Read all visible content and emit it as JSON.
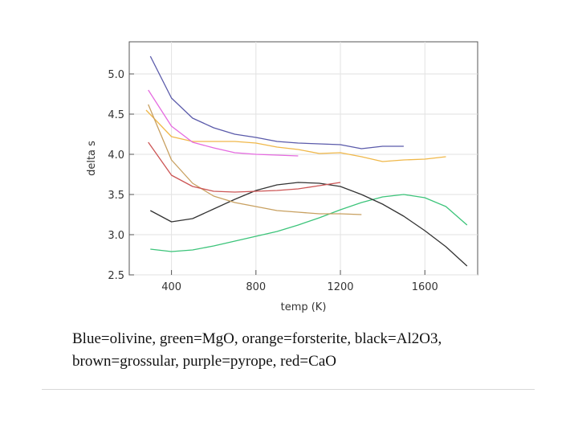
{
  "caption": {
    "line1": "Blue=olivine, green=MgO, orange=forsterite, black=Al2O3,",
    "line2": "brown=grossular, purple=pyrope, red=CaO"
  },
  "chart_data": {
    "type": "line",
    "title": "",
    "xlabel": "temp (K)",
    "ylabel": "delta s",
    "xlim": [
      200,
      1850
    ],
    "ylim": [
      2.5,
      5.4
    ],
    "xticks": [
      400,
      800,
      1200,
      1600
    ],
    "xtick_labels": [
      "400",
      "800",
      "1200",
      "1600"
    ],
    "yticks": [
      2.5,
      3.0,
      3.5,
      4.0,
      4.5,
      5.0
    ],
    "ytick_labels": [
      "2.5",
      "3.0",
      "3.5",
      "4.0",
      "4.5",
      "5.0"
    ],
    "grid": true,
    "series": [
      {
        "name": "olivine",
        "color": "#5a5aaa",
        "x": [
          300,
          400,
          500,
          600,
          700,
          800,
          900,
          1000,
          1100,
          1200,
          1300,
          1400,
          1500
        ],
        "y": [
          5.22,
          4.7,
          4.45,
          4.33,
          4.25,
          4.21,
          4.16,
          4.14,
          4.13,
          4.12,
          4.07,
          4.1,
          4.1
        ]
      },
      {
        "name": "MgO",
        "color": "#3cc47a",
        "x": [
          300,
          400,
          500,
          600,
          700,
          800,
          900,
          1000,
          1100,
          1200,
          1300,
          1400,
          1500,
          1600,
          1700,
          1800
        ],
        "y": [
          2.82,
          2.79,
          2.81,
          2.86,
          2.92,
          2.98,
          3.04,
          3.12,
          3.21,
          3.31,
          3.4,
          3.47,
          3.5,
          3.46,
          3.35,
          3.12
        ]
      },
      {
        "name": "forsterite",
        "color": "#f0b84a",
        "x": [
          280,
          400,
          500,
          600,
          700,
          800,
          900,
          1000,
          1100,
          1200,
          1300,
          1400,
          1500,
          1600,
          1700
        ],
        "y": [
          4.55,
          4.22,
          4.16,
          4.16,
          4.16,
          4.14,
          4.09,
          4.06,
          4.01,
          4.02,
          3.97,
          3.91,
          3.93,
          3.94,
          3.97
        ]
      },
      {
        "name": "Al2O3",
        "color": "#333333",
        "x": [
          300,
          400,
          500,
          600,
          700,
          800,
          900,
          1000,
          1100,
          1200,
          1300,
          1400,
          1500,
          1600,
          1700,
          1800
        ],
        "y": [
          3.3,
          3.16,
          3.2,
          3.32,
          3.44,
          3.55,
          3.62,
          3.65,
          3.64,
          3.6,
          3.5,
          3.38,
          3.23,
          3.05,
          2.85,
          2.61
        ]
      },
      {
        "name": "grossular",
        "color": "#c8a060",
        "x": [
          290,
          400,
          500,
          600,
          700,
          800,
          900,
          1000,
          1100,
          1200,
          1300
        ],
        "y": [
          4.62,
          3.93,
          3.64,
          3.48,
          3.4,
          3.35,
          3.3,
          3.28,
          3.26,
          3.26,
          3.25
        ]
      },
      {
        "name": "pyrope",
        "color": "#e56ae0",
        "x": [
          290,
          400,
          500,
          600,
          700,
          800,
          900,
          1000
        ],
        "y": [
          4.8,
          4.35,
          4.15,
          4.08,
          4.02,
          4.0,
          3.99,
          3.98
        ]
      },
      {
        "name": "CaO",
        "color": "#cc5555",
        "x": [
          290,
          400,
          500,
          600,
          700,
          800,
          900,
          1000,
          1100,
          1200
        ],
        "y": [
          4.15,
          3.74,
          3.6,
          3.54,
          3.53,
          3.54,
          3.55,
          3.57,
          3.61,
          3.65
        ]
      }
    ]
  }
}
